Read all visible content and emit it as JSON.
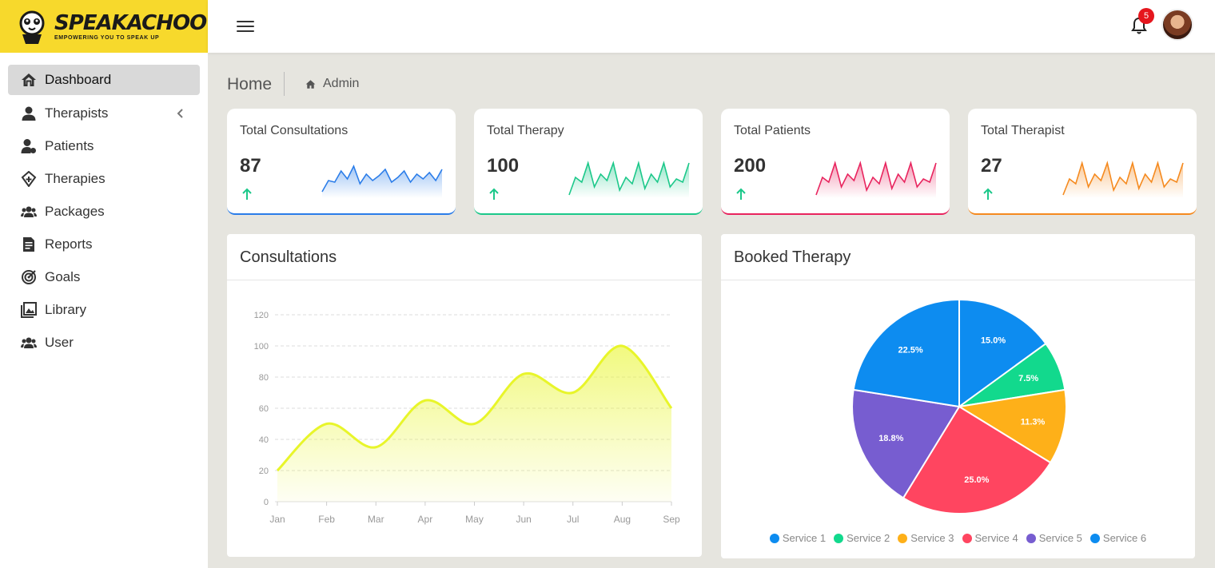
{
  "brand": {
    "name": "SPEAKACHOO",
    "tagline": "EMPOWERING YOU TO SPEAK UP"
  },
  "sidebar": {
    "items": [
      {
        "label": "Dashboard",
        "icon": "home-icon"
      },
      {
        "label": "Therapists",
        "icon": "user-icon"
      },
      {
        "label": "Patients",
        "icon": "patient-icon"
      },
      {
        "label": "Therapies",
        "icon": "therapy-icon"
      },
      {
        "label": "Packages",
        "icon": "users-icon"
      },
      {
        "label": "Reports",
        "icon": "report-icon"
      },
      {
        "label": "Goals",
        "icon": "target-icon"
      },
      {
        "label": "Library",
        "icon": "image-icon"
      },
      {
        "label": "User",
        "icon": "users-icon"
      }
    ]
  },
  "header": {
    "notification_count": "5"
  },
  "breadcrumb": {
    "home": "Home",
    "current": "Admin"
  },
  "stats": [
    {
      "title": "Total Consultations",
      "value": "87",
      "color": "#2b7de9"
    },
    {
      "title": "Total Therapy",
      "value": "100",
      "color": "#1cc88a"
    },
    {
      "title": "Total Patients",
      "value": "200",
      "color": "#e8245e"
    },
    {
      "title": "Total Therapist",
      "value": "27",
      "color": "#f58a1f"
    }
  ],
  "consultations": {
    "title": "Consultations"
  },
  "booked_therapy": {
    "title": "Booked Therapy"
  },
  "chart_data": [
    {
      "type": "area",
      "title": "Consultations",
      "categories": [
        "Jan",
        "Feb",
        "Mar",
        "Apr",
        "May",
        "Jun",
        "Jul",
        "Aug",
        "Sep"
      ],
      "values": [
        20,
        50,
        35,
        65,
        50,
        82,
        70,
        100,
        60
      ],
      "ylim": [
        0,
        120
      ],
      "yticks": [
        0,
        20,
        40,
        60,
        80,
        100,
        120
      ],
      "grid": true,
      "color": "#e8f52a"
    },
    {
      "type": "pie",
      "title": "Booked Therapy",
      "labels": [
        "Service 1",
        "Service 2",
        "Service 3",
        "Service 4",
        "Service 5",
        "Service 6"
      ],
      "values": [
        15.0,
        7.5,
        11.3,
        25.0,
        18.8,
        22.5
      ],
      "value_labels": [
        "15.0%",
        "7.5%",
        "11.3%",
        "25.0%",
        "18.8%",
        "22.5%"
      ],
      "colors": [
        "#0d8cf0",
        "#12d98d",
        "#feb019",
        "#ff4560",
        "#775dd0",
        "#0d8cf0"
      ],
      "legend": "bottom"
    }
  ]
}
